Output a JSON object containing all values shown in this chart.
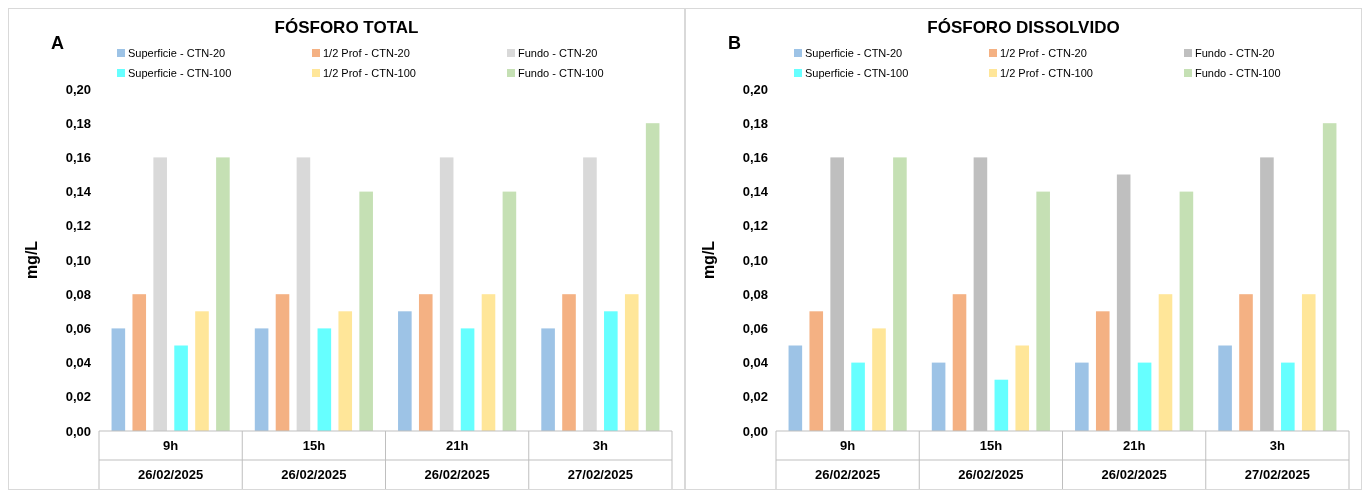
{
  "chart_data": [
    {
      "type": "bar",
      "title": "FÓSFORO TOTAL",
      "ylabel": "mg/L",
      "annotations": [
        "A"
      ],
      "legend": "top",
      "categories": [
        "9h\n26/02/2025",
        "15h\n26/02/2025",
        "21h\n26/02/2025",
        "3h\n27/02/2025"
      ],
      "ylim": [
        0,
        0.2
      ],
      "yticks": [
        {
          "value": 0,
          "label": "0,00"
        },
        {
          "value": 0.02,
          "label": "0,02"
        },
        {
          "value": 0.04,
          "label": "0,04"
        },
        {
          "value": 0.06,
          "label": "0,06"
        },
        {
          "value": 0.08,
          "label": "0,08"
        },
        {
          "value": 0.1,
          "label": "0,10"
        },
        {
          "value": 0.12,
          "label": "0,12"
        },
        {
          "value": 0.14,
          "label": "0,14"
        },
        {
          "value": 0.16,
          "label": "0,16"
        },
        {
          "value": 0.18,
          "label": "0,18"
        },
        {
          "value": 0.2,
          "label": "0,20"
        }
      ],
      "series": [
        {
          "name": "Superficie - CTN-20",
          "color": "#9dc3e6",
          "values": [
            0.06,
            0.06,
            0.07,
            0.06
          ]
        },
        {
          "name": "1/2 Prof - CTN-20",
          "color": "#f4b183",
          "values": [
            0.08,
            0.08,
            0.08,
            0.08
          ]
        },
        {
          "name": "Fundo - CTN-20",
          "color": "#d9d9d9",
          "values": [
            0.16,
            0.16,
            0.16,
            0.16
          ]
        },
        {
          "name": "Superficie - CTN-100",
          "color": "#66ffff",
          "values": [
            0.05,
            0.06,
            0.06,
            0.07
          ]
        },
        {
          "name": "1/2 Prof - CTN-100",
          "color": "#ffe699",
          "values": [
            0.07,
            0.07,
            0.08,
            0.08
          ]
        },
        {
          "name": "Fundo - CTN-100",
          "color": "#c5e0b4",
          "values": [
            0.16,
            0.14,
            0.14,
            0.18
          ]
        }
      ]
    },
    {
      "type": "bar",
      "title": "FÓSFORO DISSOLVIDO",
      "ylabel": "mg/L",
      "annotations": [
        "B"
      ],
      "legend": "top",
      "categories": [
        "9h\n26/02/2025",
        "15h\n26/02/2025",
        "21h\n26/02/2025",
        "3h\n27/02/2025"
      ],
      "ylim": [
        0,
        0.2
      ],
      "yticks": [
        {
          "value": 0,
          "label": "0,00"
        },
        {
          "value": 0.02,
          "label": "0,02"
        },
        {
          "value": 0.04,
          "label": "0,04"
        },
        {
          "value": 0.06,
          "label": "0,06"
        },
        {
          "value": 0.08,
          "label": "0,08"
        },
        {
          "value": 0.1,
          "label": "0,10"
        },
        {
          "value": 0.12,
          "label": "0,12"
        },
        {
          "value": 0.14,
          "label": "0,14"
        },
        {
          "value": 0.16,
          "label": "0,16"
        },
        {
          "value": 0.18,
          "label": "0,18"
        },
        {
          "value": 0.2,
          "label": "0,20"
        }
      ],
      "series": [
        {
          "name": "Superficie - CTN-20",
          "color": "#9dc3e6",
          "values": [
            0.05,
            0.04,
            0.04,
            0.05
          ]
        },
        {
          "name": "1/2 Prof - CTN-20",
          "color": "#f4b183",
          "values": [
            0.07,
            0.08,
            0.07,
            0.08
          ]
        },
        {
          "name": "Fundo - CTN-20",
          "color": "#bfbfbf",
          "values": [
            0.16,
            0.16,
            0.15,
            0.16
          ]
        },
        {
          "name": "Superficie - CTN-100",
          "color": "#66ffff",
          "values": [
            0.04,
            0.03,
            0.04,
            0.04
          ]
        },
        {
          "name": "1/2 Prof - CTN-100",
          "color": "#ffe699",
          "values": [
            0.06,
            0.05,
            0.08,
            0.08
          ]
        },
        {
          "name": "Fundo - CTN-100",
          "color": "#c5e0b4",
          "values": [
            0.16,
            0.14,
            0.14,
            0.18
          ]
        }
      ]
    }
  ]
}
